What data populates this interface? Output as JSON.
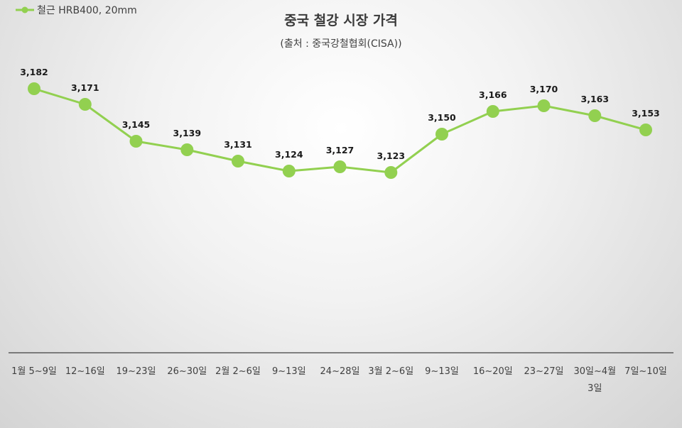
{
  "chart_data": {
    "type": "line",
    "title": "중국 철강 시장 가격",
    "subtitle": "(출처 : 중국강철협회(CISA))",
    "categories": [
      [
        "1월 5~9일"
      ],
      [
        "12~16일"
      ],
      [
        "19~23일"
      ],
      [
        "26~30일"
      ],
      [
        "2월 2~6일"
      ],
      [
        "9~13일"
      ],
      [
        "24~28일"
      ],
      [
        "3월 2~6일"
      ],
      [
        "9~13일"
      ],
      [
        "16~20일"
      ],
      [
        "23~27일"
      ],
      [
        "30일~4월",
        "3일"
      ],
      [
        "7일~10일"
      ]
    ],
    "series": [
      {
        "name": "철근 HRB400, 20mm",
        "color": "#92d050",
        "values": [
          3182,
          3171,
          3145,
          3139,
          3131,
          3124,
          3127,
          3123,
          3150,
          3166,
          3170,
          3163,
          3153
        ],
        "labels": [
          "3,182",
          "3,171",
          "3,145",
          "3,139",
          "3,131",
          "3,124",
          "3,127",
          "3,123",
          "3,150",
          "3,166",
          "3,170",
          "3,163",
          "3,153"
        ]
      }
    ],
    "legend_position": "top-left",
    "grid": false,
    "y_axis_visible": false,
    "ylim": [
      2900,
      3200
    ]
  }
}
